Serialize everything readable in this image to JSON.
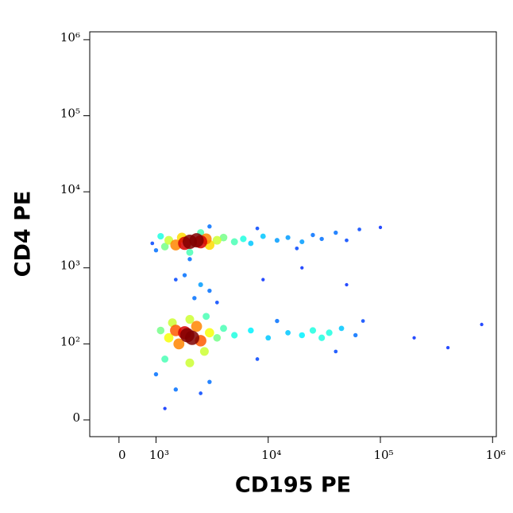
{
  "chart_data": {
    "type": "scatter",
    "xlabel": "CD195 PE",
    "ylabel": "CD4 PE",
    "xscale": "biexponential",
    "xlinthresh": 1000,
    "xlinscale": 0.33,
    "yscale": "biexponential",
    "ylinthresh": 100,
    "ylinscale": 1.0,
    "xlim": [
      -790,
      1080000
    ],
    "ylim": [
      -22,
      1270000
    ],
    "xticks": [
      0,
      {
        "value": 1000,
        "label": "10³"
      },
      {
        "value": 10000,
        "label": "10⁴"
      },
      {
        "value": 100000,
        "label": "10⁵"
      },
      {
        "value": 1000000,
        "label": "10⁶"
      }
    ],
    "yticks": [
      0,
      {
        "value": 100,
        "label": "10²"
      },
      {
        "value": 1000,
        "label": "10³"
      },
      {
        "value": 10000,
        "label": "10⁴"
      },
      {
        "value": 100000,
        "label": "10⁵"
      },
      {
        "value": 1000000,
        "label": "10⁶"
      }
    ],
    "colormap": "jet",
    "x": [
      100000,
      65000,
      50000,
      40000,
      30000,
      25000,
      20000,
      18000,
      15000,
      12000,
      9000,
      8000,
      7000,
      1000,
      900,
      2000,
      3000,
      6000,
      5000,
      4000,
      1100,
      1200,
      2000,
      2500,
      3500,
      1300,
      3000,
      1700,
      2800,
      1500,
      2500,
      1800,
      2300,
      2000,
      20000,
      9000,
      50000,
      1500,
      3500,
      1800,
      3000,
      2200,
      2500,
      200000,
      400000,
      800000,
      1200,
      2500,
      70000,
      8000,
      40000,
      60000,
      1000,
      1500,
      3000,
      12000,
      45000,
      10000,
      15000,
      7000,
      20000,
      25000,
      30000,
      35000,
      5000,
      1100,
      3500,
      4000,
      1200,
      2800,
      1300,
      3000,
      1400,
      2700,
      2000,
      2000,
      1500,
      2500,
      1600,
      2300,
      1800,
      1900,
      2100
    ],
    "y": [
      3400,
      3200,
      2300,
      2900,
      2400,
      2700,
      2200,
      1800,
      2500,
      2300,
      2600,
      3300,
      2100,
      1700,
      2100,
      1300,
      3500,
      2400,
      2200,
      2500,
      2600,
      1900,
      1600,
      2900,
      2300,
      2300,
      2000,
      2500,
      2400,
      2000,
      2200,
      2100,
      2300,
      2200,
      1000,
      700,
      600,
      700,
      350,
      800,
      500,
      400,
      600,
      120,
      95,
      180,
      15,
      35,
      200,
      80,
      90,
      130,
      60,
      40,
      50,
      200,
      160,
      120,
      140,
      150,
      130,
      150,
      120,
      140,
      130,
      150,
      120,
      160,
      80,
      230,
      120,
      140,
      190,
      90,
      210,
      75,
      150,
      110,
      100,
      170,
      140,
      130,
      120
    ],
    "values": [
      0.02,
      0.05,
      0.05,
      0.1,
      0.1,
      0.1,
      0.15,
      0.05,
      0.15,
      0.15,
      0.2,
      0.05,
      0.2,
      0.1,
      0.05,
      0.1,
      0.1,
      0.3,
      0.35,
      0.4,
      0.3,
      0.4,
      0.35,
      0.35,
      0.5,
      0.5,
      0.6,
      0.6,
      0.7,
      0.7,
      0.9,
      0.9,
      1,
      1,
      0.02,
      0.02,
      0.02,
      0.05,
      0.05,
      0.1,
      0.1,
      0.1,
      0.15,
      0.02,
      0.02,
      0.02,
      0.02,
      0.05,
      0.05,
      0.05,
      0.05,
      0.1,
      0.1,
      0.1,
      0.1,
      0.1,
      0.2,
      0.2,
      0.2,
      0.25,
      0.25,
      0.3,
      0.3,
      0.3,
      0.3,
      0.4,
      0.4,
      0.35,
      0.35,
      0.35,
      0.55,
      0.55,
      0.5,
      0.5,
      0.5,
      0.5,
      0.75,
      0.75,
      0.7,
      0.7,
      0.9,
      1,
      1
    ]
  }
}
